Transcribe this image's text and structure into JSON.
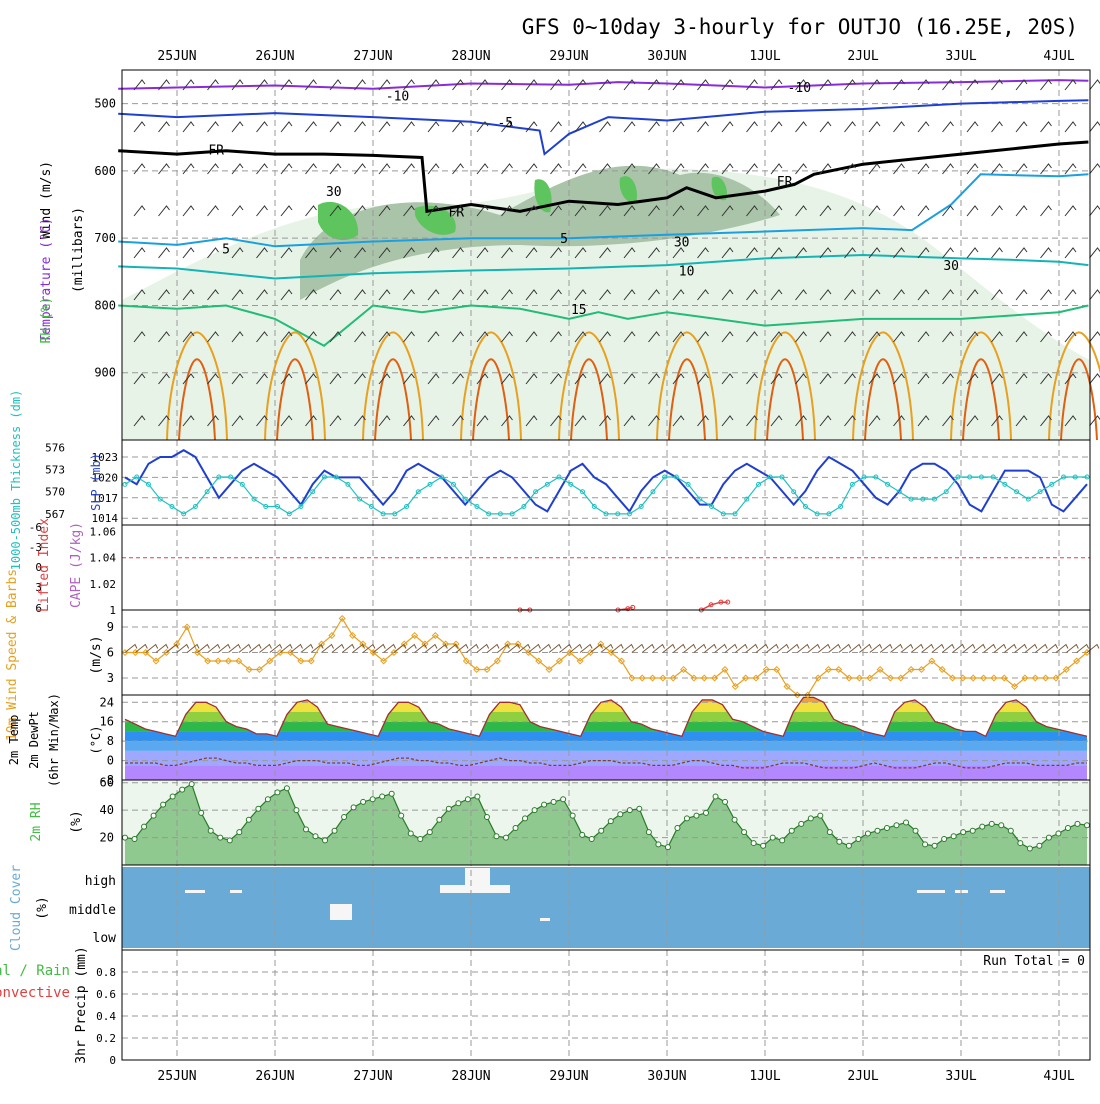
{
  "title": "GFS 0~10day 3-hourly for OUTJO (16.25E, 20S)",
  "dates": [
    "25JUN",
    "26JUN",
    "27JUN",
    "28JUN",
    "29JUN",
    "30JUN",
    "1JUL",
    "2JUL",
    "3JUL",
    "4JUL"
  ],
  "colors": {
    "purple": "#8a2bd8",
    "blue": "#1f3fd0",
    "lightblue": "#1aa0e0",
    "teal": "#14b4b4",
    "green": "#22bb77",
    "orange": "#e8a020",
    "darkorange": "#e06010",
    "slp": "#1f3fd0",
    "thickness": "#20c0c0",
    "rhfill": "#44bb44",
    "cloud": "#6aaad6"
  },
  "chart_data": [
    {
      "id": "upper-air",
      "type": "contour",
      "ylabel_parts": [
        "Wind (m/s)",
        "Temperature (°C)",
        "RH (%)"
      ],
      "ylabel_mb": "(millibars)",
      "yticks": [
        500,
        600,
        700,
        800,
        900
      ],
      "ylim": [
        1000,
        450
      ],
      "contour_labels": [
        {
          "text": "-10",
          "date_index": 2.25,
          "level": 488
        },
        {
          "text": "-10",
          "date_index": 6.35,
          "level": 475
        },
        {
          "text": "-5",
          "date_index": 3.35,
          "level": 527
        },
        {
          "text": "FR",
          "date_index": 0.4,
          "level": 568
        },
        {
          "text": "FR",
          "date_index": 2.85,
          "level": 660
        },
        {
          "text": "FR",
          "date_index": 6.2,
          "level": 615
        },
        {
          "text": "5",
          "date_index": 0.5,
          "level": 715
        },
        {
          "text": "5",
          "date_index": 3.95,
          "level": 700
        },
        {
          "text": "10",
          "date_index": 5.2,
          "level": 748
        },
        {
          "text": "15",
          "date_index": 4.1,
          "level": 805
        },
        {
          "text": "30",
          "date_index": 1.6,
          "level": 630
        },
        {
          "text": "30",
          "date_index": 5.15,
          "level": 705
        },
        {
          "text": "30",
          "date_index": 7.9,
          "level": 740
        }
      ]
    },
    {
      "id": "slp-thickness",
      "type": "line",
      "ylabel_left": "1000-500mb Thickness (dm)",
      "ylabel_right": "SLP (mb)",
      "left_ticks": [
        567,
        570,
        573,
        576
      ],
      "right_ticks": [
        1014,
        1017,
        1020,
        1023
      ],
      "series": [
        {
          "name": "SLP (mb)",
          "values": [
            1020,
            1019,
            1022,
            1023,
            1023,
            1024,
            1023,
            1020,
            1017,
            1019,
            1021,
            1022,
            1021,
            1020,
            1018,
            1016,
            1019,
            1021,
            1020,
            1020,
            1020,
            1018,
            1016,
            1018,
            1021,
            1022,
            1021,
            1020,
            1018,
            1016,
            1018,
            1020,
            1021,
            1020,
            1018,
            1016,
            1015,
            1018,
            1021,
            1022,
            1020,
            1019,
            1017,
            1015,
            1018,
            1020,
            1021,
            1020,
            1018,
            1016,
            1016,
            1019,
            1021,
            1022,
            1021,
            1020,
            1018,
            1016,
            1018,
            1021,
            1023,
            1022,
            1021,
            1019,
            1017,
            1016,
            1018,
            1021,
            1022,
            1022,
            1021,
            1019,
            1016,
            1015,
            1018,
            1021,
            1021,
            1021,
            1020,
            1016,
            1015,
            1017,
            1019
          ]
        },
        {
          "name": "1000-500mb Thickness (dm)",
          "values": [
            571,
            572,
            571,
            569,
            568,
            567,
            568,
            570,
            572,
            572,
            571,
            569,
            568,
            568,
            567,
            568,
            570,
            572,
            572,
            571,
            569,
            568,
            567,
            567,
            568,
            570,
            571,
            572,
            571,
            569,
            568,
            567,
            567,
            567,
            568,
            570,
            571,
            572,
            571,
            570,
            568,
            567,
            567,
            567,
            568,
            570,
            572,
            572,
            571,
            569,
            568,
            567,
            567,
            569,
            571,
            572,
            572,
            570,
            568,
            567,
            567,
            568,
            571,
            572,
            572,
            571,
            570,
            569,
            569,
            569,
            570,
            572,
            572,
            572,
            572,
            571,
            570,
            569,
            570,
            571,
            572,
            572,
            572
          ]
        }
      ]
    },
    {
      "id": "instability",
      "type": "line",
      "ylabel_left": "Lifted Index",
      "ylabel_right": "CAPE (J/kg)",
      "left_ticks": [
        "-6",
        "-3",
        "0",
        "3",
        "6"
      ],
      "right_ticks": [
        "1",
        "1.02",
        "1.04",
        "1.06"
      ],
      "cape_marks": [
        {
          "x": [
            3.5,
            3.6
          ],
          "y": [
            1.0,
            1.0
          ]
        },
        {
          "x": [
            4.5,
            4.6,
            4.65
          ],
          "y": [
            1.0,
            1.001,
            1.002
          ]
        },
        {
          "x": [
            5.35,
            5.45,
            5.55,
            5.62
          ],
          "y": [
            1.0,
            1.004,
            1.006,
            1.006
          ]
        }
      ]
    },
    {
      "id": "wind10m",
      "type": "line",
      "ylabel_left": "10m Wind Speed & Barbs",
      "ylabel_unit": "(m/s)",
      "yticks": [
        3,
        6,
        9
      ],
      "ylim": [
        1,
        11
      ],
      "series": [
        {
          "name": "10m Wind Speed",
          "values": [
            6,
            6,
            6,
            5,
            6,
            7,
            9,
            6,
            5,
            5,
            5,
            5,
            4,
            4,
            5,
            6,
            6,
            5,
            5,
            7,
            8,
            10,
            8,
            7,
            6,
            5,
            6,
            7,
            8,
            7,
            8,
            7,
            7,
            5,
            4,
            4,
            5,
            7,
            7,
            6,
            5,
            4,
            5,
            6,
            5,
            6,
            7,
            6,
            5,
            3,
            3,
            3,
            3,
            3,
            4,
            3,
            3,
            3,
            4,
            2,
            3,
            3,
            4,
            4,
            2,
            1,
            1,
            3,
            4,
            4,
            3,
            3,
            3,
            4,
            3,
            3,
            4,
            4,
            5,
            4,
            3,
            3,
            3,
            3,
            3,
            3,
            2,
            3,
            3,
            3,
            3,
            4,
            5,
            6
          ]
        }
      ]
    },
    {
      "id": "temperature",
      "type": "area",
      "ylabel_parts": [
        "2m Temp",
        "2m DewPt",
        "(6hr Min/Max)"
      ],
      "ylabel_unit": "(°C)",
      "yticks": [
        -8,
        0,
        8,
        16,
        24
      ],
      "ylim": [
        -8,
        27
      ],
      "series": [
        {
          "name": "2m Temp",
          "values": [
            17,
            15,
            13,
            12,
            11,
            10,
            19,
            24,
            24,
            22,
            16,
            14,
            13,
            11,
            11,
            10,
            19,
            24,
            25,
            22,
            15,
            14,
            13,
            12,
            11,
            10,
            19,
            24,
            24,
            22,
            16,
            15,
            13,
            12,
            11,
            10,
            19,
            24,
            24,
            23,
            16,
            14,
            13,
            12,
            11,
            10,
            19,
            24,
            25,
            22,
            16,
            15,
            13,
            12,
            11,
            10,
            20,
            25,
            25,
            23,
            17,
            16,
            14,
            12,
            11,
            10,
            20,
            26,
            26,
            24,
            17,
            15,
            14,
            12,
            11,
            10,
            20,
            24,
            25,
            22,
            16,
            15,
            13,
            12,
            12,
            10,
            19,
            24,
            25,
            22,
            16,
            14,
            13,
            12,
            11,
            10
          ]
        },
        {
          "name": "2m DewPt",
          "values": [
            -1,
            -1,
            -1,
            -1,
            -2,
            -2,
            -1,
            0,
            1,
            1,
            0,
            -1,
            -1,
            -2,
            -2,
            -2,
            -1,
            0,
            0,
            0,
            -1,
            -1,
            -1,
            -2,
            -2,
            -1,
            0,
            1,
            1,
            0,
            0,
            -1,
            -1,
            -2,
            -2,
            -1,
            0,
            1,
            0,
            0,
            -1,
            -1,
            -2,
            -2,
            -2,
            -1,
            0,
            0,
            0,
            -1,
            -1,
            -1,
            -2,
            -2,
            -2,
            -1,
            0,
            0,
            -1,
            -2,
            -2,
            -3,
            -3,
            -3,
            -2,
            -1,
            -1,
            -1,
            -2,
            -3,
            -3,
            -3,
            -3,
            -2,
            -1,
            -2,
            -3,
            -3,
            -3,
            -2,
            -1,
            -1,
            -2,
            -3,
            -3,
            -3,
            -2,
            -1,
            -1,
            -1,
            -2,
            -2,
            -2,
            -2,
            -1,
            -1
          ]
        }
      ]
    },
    {
      "id": "rh2m",
      "type": "area",
      "ylabel_left": "2m RH",
      "ylabel_unit": "(%)",
      "yticks": [
        20,
        40,
        60
      ],
      "ylim": [
        0,
        62
      ],
      "series": [
        {
          "name": "2m RH",
          "values": [
            20,
            19,
            28,
            36,
            44,
            50,
            55,
            59,
            38,
            25,
            20,
            18,
            24,
            33,
            41,
            48,
            53,
            56,
            40,
            26,
            21,
            18,
            25,
            35,
            42,
            46,
            48,
            50,
            52,
            36,
            23,
            19,
            24,
            33,
            41,
            45,
            48,
            50,
            35,
            21,
            20,
            27,
            34,
            40,
            44,
            46,
            48,
            36,
            22,
            19,
            25,
            32,
            37,
            40,
            41,
            24,
            15,
            13,
            27,
            34,
            36,
            38,
            50,
            46,
            33,
            24,
            16,
            14,
            20,
            18,
            25,
            30,
            34,
            36,
            24,
            17,
            14,
            19,
            23,
            25,
            27,
            29,
            31,
            25,
            15,
            14,
            19,
            21,
            24,
            25,
            28,
            30,
            29,
            25,
            16,
            12,
            14,
            20,
            23,
            27,
            30,
            29
          ]
        }
      ]
    },
    {
      "id": "cloud-cover",
      "type": "heatmap",
      "ylabel_left": "Cloud Cover",
      "ylabel_unit": "(%)",
      "levels": [
        "high",
        "middle",
        "low"
      ]
    },
    {
      "id": "precip",
      "type": "bar",
      "ylabel_left": "Total / Rain",
      "ylabel_left2": "Convective",
      "ylabel_unit": "3hr Precip (mm)",
      "yticks": [
        "0",
        "0.2",
        "0.4",
        "0.6",
        "0.8"
      ],
      "ylim": [
        0,
        1
      ],
      "run_total": "Run Total = 0",
      "values": []
    }
  ]
}
